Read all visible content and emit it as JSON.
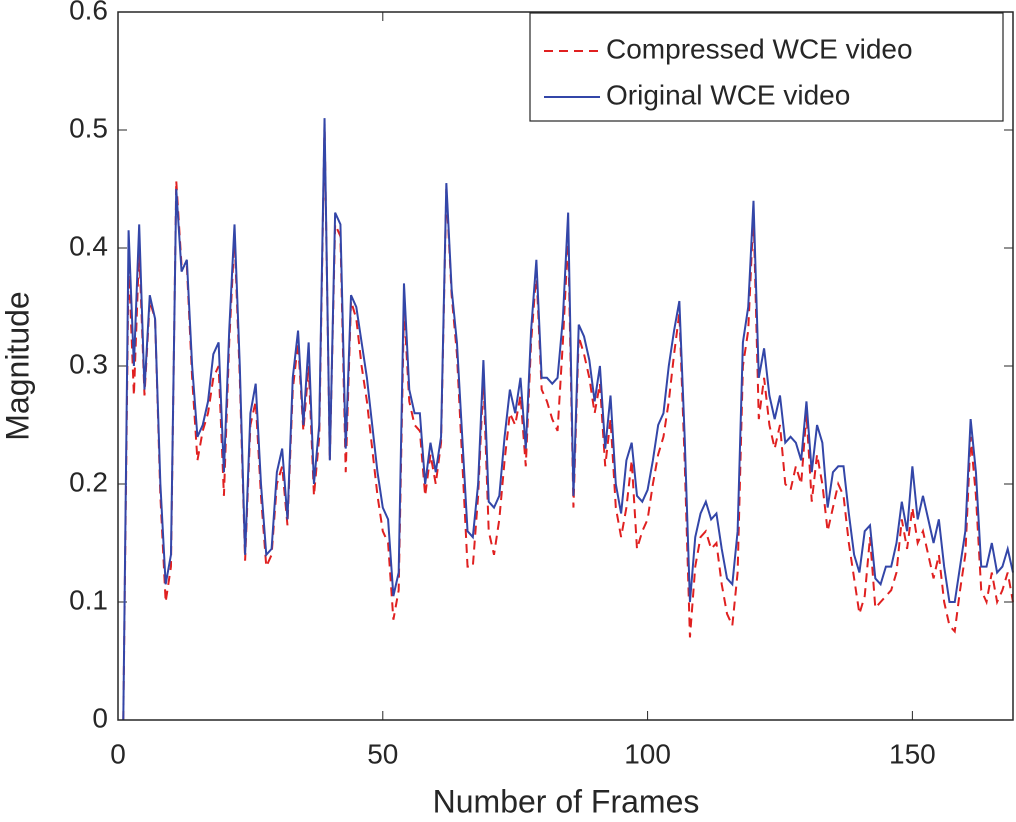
{
  "chart_data": {
    "type": "line",
    "xlabel": "Number of Frames",
    "ylabel": "Magnitude",
    "x": [
      1,
      2,
      3,
      4,
      5,
      6,
      7,
      8,
      9,
      10,
      11,
      12,
      13,
      14,
      15,
      16,
      17,
      18,
      19,
      20,
      21,
      22,
      23,
      24,
      25,
      26,
      27,
      28,
      29,
      30,
      31,
      32,
      33,
      34,
      35,
      36,
      37,
      38,
      39,
      40,
      41,
      42,
      43,
      44,
      45,
      46,
      47,
      48,
      49,
      50,
      51,
      52,
      53,
      54,
      55,
      56,
      57,
      58,
      59,
      60,
      61,
      62,
      63,
      64,
      65,
      66,
      67,
      68,
      69,
      70,
      71,
      72,
      73,
      74,
      75,
      76,
      77,
      78,
      79,
      80,
      81,
      82,
      83,
      84,
      85,
      86,
      87,
      88,
      89,
      90,
      91,
      92,
      93,
      94,
      95,
      96,
      97,
      98,
      99,
      100,
      101,
      102,
      103,
      104,
      105,
      106,
      107,
      108,
      109,
      110,
      111,
      112,
      113,
      114,
      115,
      116,
      117,
      118,
      119,
      120,
      121,
      122,
      123,
      124,
      125,
      126,
      127,
      128,
      129,
      130,
      131,
      132,
      133,
      134,
      135,
      136,
      137,
      138,
      139,
      140,
      141,
      142,
      143,
      144,
      145,
      146,
      147,
      148,
      149,
      150,
      151,
      152,
      153,
      154,
      155,
      156,
      157,
      158,
      159,
      160,
      161,
      162,
      163,
      164,
      165,
      166,
      167,
      168,
      169
    ],
    "series": [
      {
        "name": "Compressed WCE video",
        "color": "#e02020",
        "dash": true,
        "values": [
          0,
          0.39,
          0.275,
          0.4,
          0.275,
          0.355,
          0.34,
          0.19,
          0.1,
          0.13,
          0.457,
          0.385,
          0.385,
          0.29,
          0.22,
          0.245,
          0.26,
          0.29,
          0.3,
          0.19,
          0.32,
          0.41,
          0.29,
          0.135,
          0.25,
          0.27,
          0.19,
          0.13,
          0.14,
          0.2,
          0.215,
          0.165,
          0.28,
          0.32,
          0.245,
          0.3,
          0.19,
          0.24,
          0.505,
          0.22,
          0.42,
          0.41,
          0.21,
          0.355,
          0.34,
          0.3,
          0.27,
          0.23,
          0.19,
          0.16,
          0.15,
          0.085,
          0.11,
          0.35,
          0.27,
          0.25,
          0.245,
          0.19,
          0.225,
          0.2,
          0.235,
          0.45,
          0.36,
          0.31,
          0.22,
          0.13,
          0.13,
          0.19,
          0.29,
          0.16,
          0.14,
          0.17,
          0.22,
          0.26,
          0.25,
          0.275,
          0.215,
          0.32,
          0.38,
          0.28,
          0.27,
          0.255,
          0.245,
          0.32,
          0.41,
          0.18,
          0.325,
          0.31,
          0.29,
          0.26,
          0.285,
          0.215,
          0.255,
          0.18,
          0.155,
          0.18,
          0.22,
          0.145,
          0.16,
          0.17,
          0.2,
          0.225,
          0.24,
          0.27,
          0.31,
          0.345,
          0.22,
          0.07,
          0.13,
          0.155,
          0.16,
          0.145,
          0.15,
          0.115,
          0.09,
          0.08,
          0.125,
          0.3,
          0.33,
          0.43,
          0.255,
          0.29,
          0.25,
          0.23,
          0.25,
          0.2,
          0.195,
          0.215,
          0.2,
          0.26,
          0.185,
          0.225,
          0.2,
          0.16,
          0.18,
          0.2,
          0.19,
          0.15,
          0.12,
          0.09,
          0.105,
          0.155,
          0.095,
          0.1,
          0.105,
          0.11,
          0.125,
          0.17,
          0.145,
          0.18,
          0.15,
          0.16,
          0.14,
          0.12,
          0.14,
          0.1,
          0.08,
          0.075,
          0.11,
          0.14,
          0.24,
          0.19,
          0.11,
          0.1,
          0.125,
          0.1,
          0.11,
          0.125,
          0.1
        ]
      },
      {
        "name": "Original WCE video",
        "color": "#3346a8",
        "dash": false,
        "values": [
          0,
          0.415,
          0.3,
          0.42,
          0.28,
          0.36,
          0.34,
          0.2,
          0.115,
          0.14,
          0.45,
          0.38,
          0.39,
          0.3,
          0.24,
          0.25,
          0.27,
          0.31,
          0.32,
          0.21,
          0.33,
          0.42,
          0.3,
          0.14,
          0.26,
          0.285,
          0.2,
          0.14,
          0.145,
          0.21,
          0.23,
          0.17,
          0.29,
          0.33,
          0.25,
          0.32,
          0.2,
          0.25,
          0.51,
          0.22,
          0.43,
          0.42,
          0.23,
          0.36,
          0.35,
          0.32,
          0.29,
          0.25,
          0.21,
          0.18,
          0.17,
          0.105,
          0.125,
          0.37,
          0.28,
          0.26,
          0.26,
          0.2,
          0.235,
          0.21,
          0.24,
          0.455,
          0.365,
          0.32,
          0.24,
          0.16,
          0.155,
          0.2,
          0.305,
          0.185,
          0.18,
          0.19,
          0.24,
          0.28,
          0.26,
          0.29,
          0.23,
          0.33,
          0.39,
          0.29,
          0.29,
          0.285,
          0.29,
          0.34,
          0.43,
          0.19,
          0.335,
          0.325,
          0.305,
          0.27,
          0.3,
          0.23,
          0.275,
          0.2,
          0.175,
          0.22,
          0.235,
          0.19,
          0.185,
          0.195,
          0.22,
          0.25,
          0.26,
          0.3,
          0.33,
          0.355,
          0.24,
          0.1,
          0.155,
          0.175,
          0.185,
          0.17,
          0.175,
          0.145,
          0.12,
          0.115,
          0.16,
          0.32,
          0.35,
          0.44,
          0.29,
          0.315,
          0.275,
          0.255,
          0.275,
          0.235,
          0.24,
          0.235,
          0.22,
          0.27,
          0.21,
          0.25,
          0.235,
          0.18,
          0.21,
          0.215,
          0.215,
          0.175,
          0.14,
          0.125,
          0.16,
          0.165,
          0.12,
          0.115,
          0.13,
          0.13,
          0.15,
          0.185,
          0.16,
          0.215,
          0.17,
          0.19,
          0.17,
          0.15,
          0.17,
          0.13,
          0.1,
          0.1,
          0.13,
          0.16,
          0.255,
          0.21,
          0.13,
          0.13,
          0.15,
          0.125,
          0.13,
          0.145,
          0.125
        ]
      }
    ],
    "xlim": [
      0,
      169
    ],
    "ylim": [
      0,
      0.6
    ],
    "xticks": [
      0,
      50,
      100,
      150
    ],
    "yticks": [
      0,
      0.1,
      0.2,
      0.3,
      0.4,
      0.5,
      0.6
    ],
    "legend": "upper right"
  }
}
